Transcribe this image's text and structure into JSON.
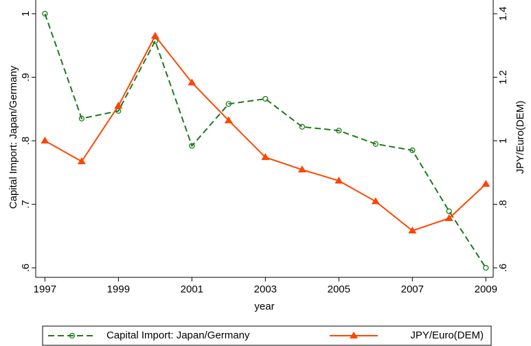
{
  "chart_data": {
    "type": "line",
    "x_label": "year",
    "y_label": "Capital Import: Japan/Germany",
    "y2_label": "JPY/Euro(DEM)",
    "x": [
      1997,
      1998,
      1999,
      2000,
      2001,
      2002,
      2003,
      2004,
      2005,
      2006,
      2007,
      2008,
      2009
    ],
    "xlim": [
      1996.75,
      2009.2
    ],
    "xticks": [
      1997,
      1999,
      2001,
      2003,
      2005,
      2007,
      2009
    ],
    "ylim": [
      0.585,
      1.0
    ],
    "yticks": [
      {
        "value": 0.6,
        "label": ".6"
      },
      {
        "value": 0.7,
        "label": ".7"
      },
      {
        "value": 0.8,
        "label": ".8"
      },
      {
        "value": 0.9,
        "label": ".9"
      },
      1
    ],
    "y2lim": [
      0.57,
      1.4
    ],
    "y2ticks": [
      {
        "value": 0.6,
        "label": ".6"
      },
      {
        "value": 0.8,
        "label": ".8"
      },
      1,
      1.2,
      1.4
    ],
    "legend": "bottom",
    "series": [
      {
        "name": "Capital Import: Japan/Germany",
        "color": "#1a7a1a",
        "dashed": true,
        "marker": "circle",
        "values": [
          1.0,
          0.835,
          0.847,
          0.957,
          0.792,
          0.858,
          0.866,
          0.822,
          0.816,
          0.795,
          0.785,
          0.689,
          0.6
        ]
      },
      {
        "name": "JPY/Euro(DEM)",
        "color": "#ff4500",
        "dashed": false,
        "marker": "triangle",
        "axis": "y2",
        "values": [
          1.0,
          0.935,
          1.11,
          1.33,
          1.183,
          1.064,
          0.948,
          0.909,
          0.874,
          0.809,
          0.717,
          0.756,
          0.864
        ]
      }
    ]
  }
}
